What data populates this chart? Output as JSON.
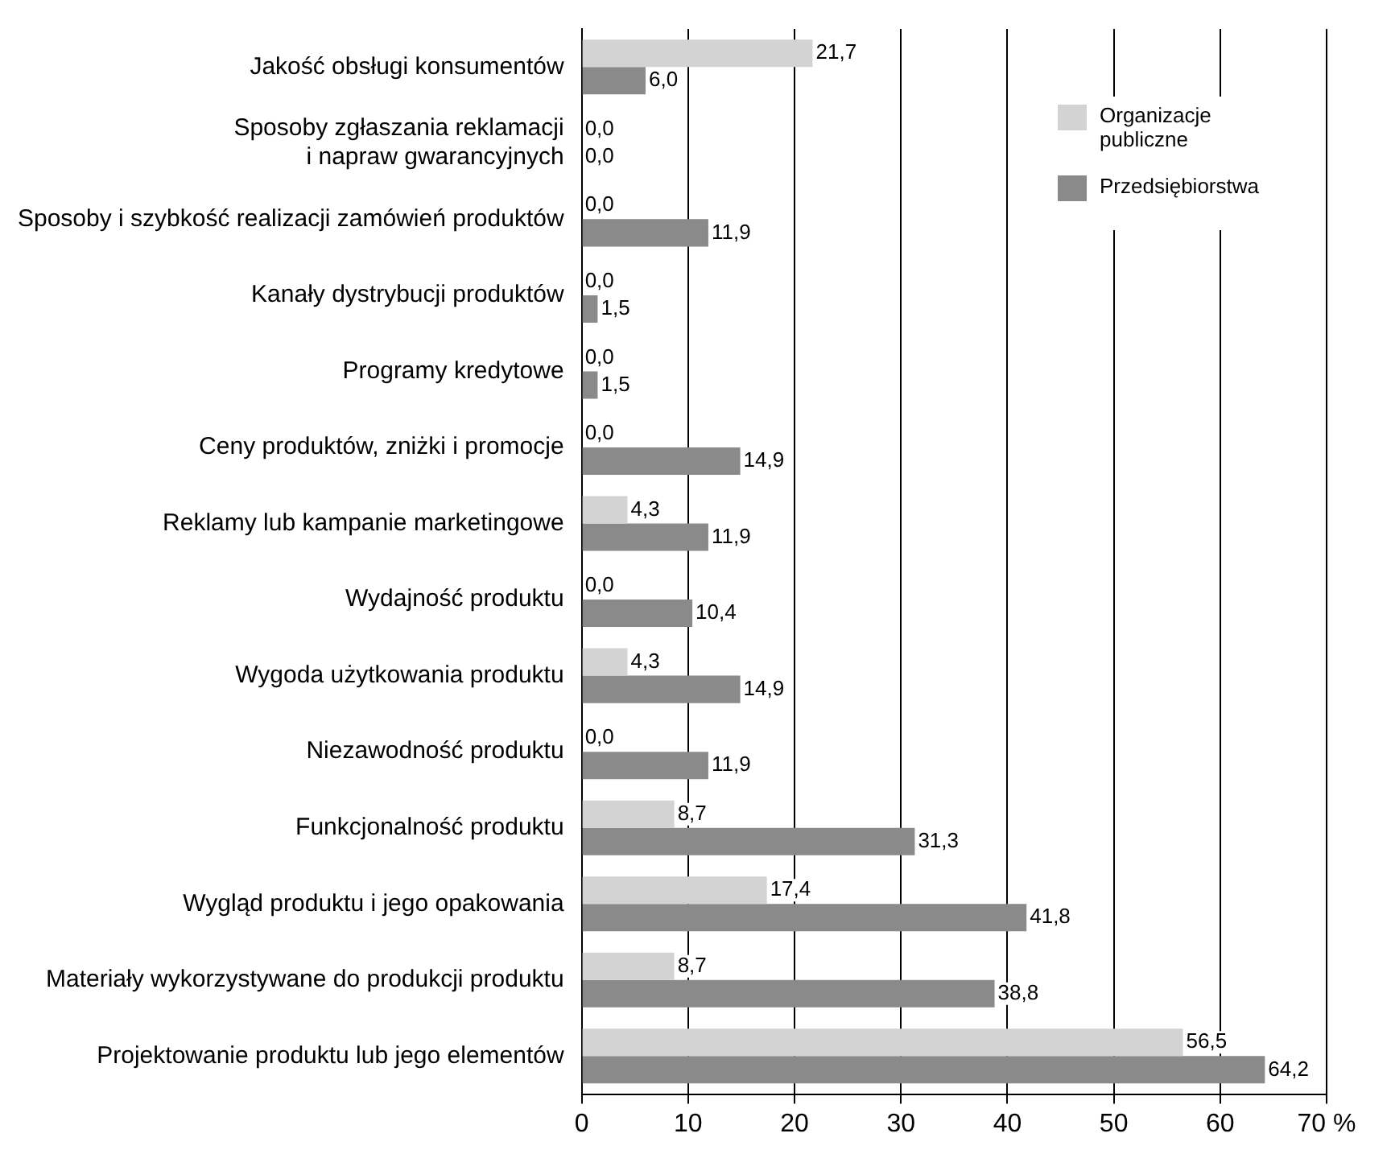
{
  "chart_data": {
    "type": "bar",
    "orientation": "horizontal",
    "categories": [
      "Jakość obsługi konsumentów",
      "Sposoby zgłaszania reklamacji\ni napraw gwarancyjnych",
      "Sposoby i szybkość realizacji zamówień produktów",
      "Kanały dystrybucji produktów",
      "Programy kredytowe",
      "Ceny produktów, zniżki i promocje",
      "Reklamy lub kampanie marketingowe",
      "Wydajność produktu",
      "Wygoda użytkowania produktu",
      "Niezawodność produktu",
      "Funkcjonalność produktu",
      "Wygląd produktu i jego opakowania",
      "Materiały wykorzystywane do produkcji produktu",
      "Projektowanie produktu lub jego elementów"
    ],
    "series": [
      {
        "name": "Organizacje publiczne",
        "color": "#d3d3d3",
        "values": [
          21.7,
          0,
          0,
          0,
          0,
          0,
          4.3,
          0,
          4.3,
          0,
          8.7,
          17.4,
          8.7,
          56.5
        ],
        "value_labels": [
          "21,7",
          "0,0",
          "0,0",
          "0,0",
          "0,0",
          "0,0",
          "4,3",
          "0,0",
          "4,3",
          "0,0",
          "8,7",
          "17,4",
          "8,7",
          "56,5"
        ]
      },
      {
        "name": "Przedsiębiorstwa",
        "color": "#8a8a8a",
        "values": [
          6.0,
          0,
          11.9,
          1.5,
          1.5,
          14.9,
          11.9,
          10.4,
          14.9,
          11.9,
          31.3,
          41.8,
          38.8,
          64.2
        ],
        "value_labels": [
          "6,0",
          "0,0",
          "11,9",
          "1,5",
          "1,5",
          "14,9",
          "11,9",
          "10,4",
          "14,9",
          "11,9",
          "31,3",
          "41,8",
          "38,8",
          "64,2"
        ]
      }
    ],
    "xlim": [
      0,
      70
    ],
    "xticks": [
      0,
      10,
      20,
      30,
      40,
      50,
      60,
      {
        "value": 70,
        "label": "70 %"
      }
    ],
    "grid": "x",
    "legend": "top right"
  }
}
